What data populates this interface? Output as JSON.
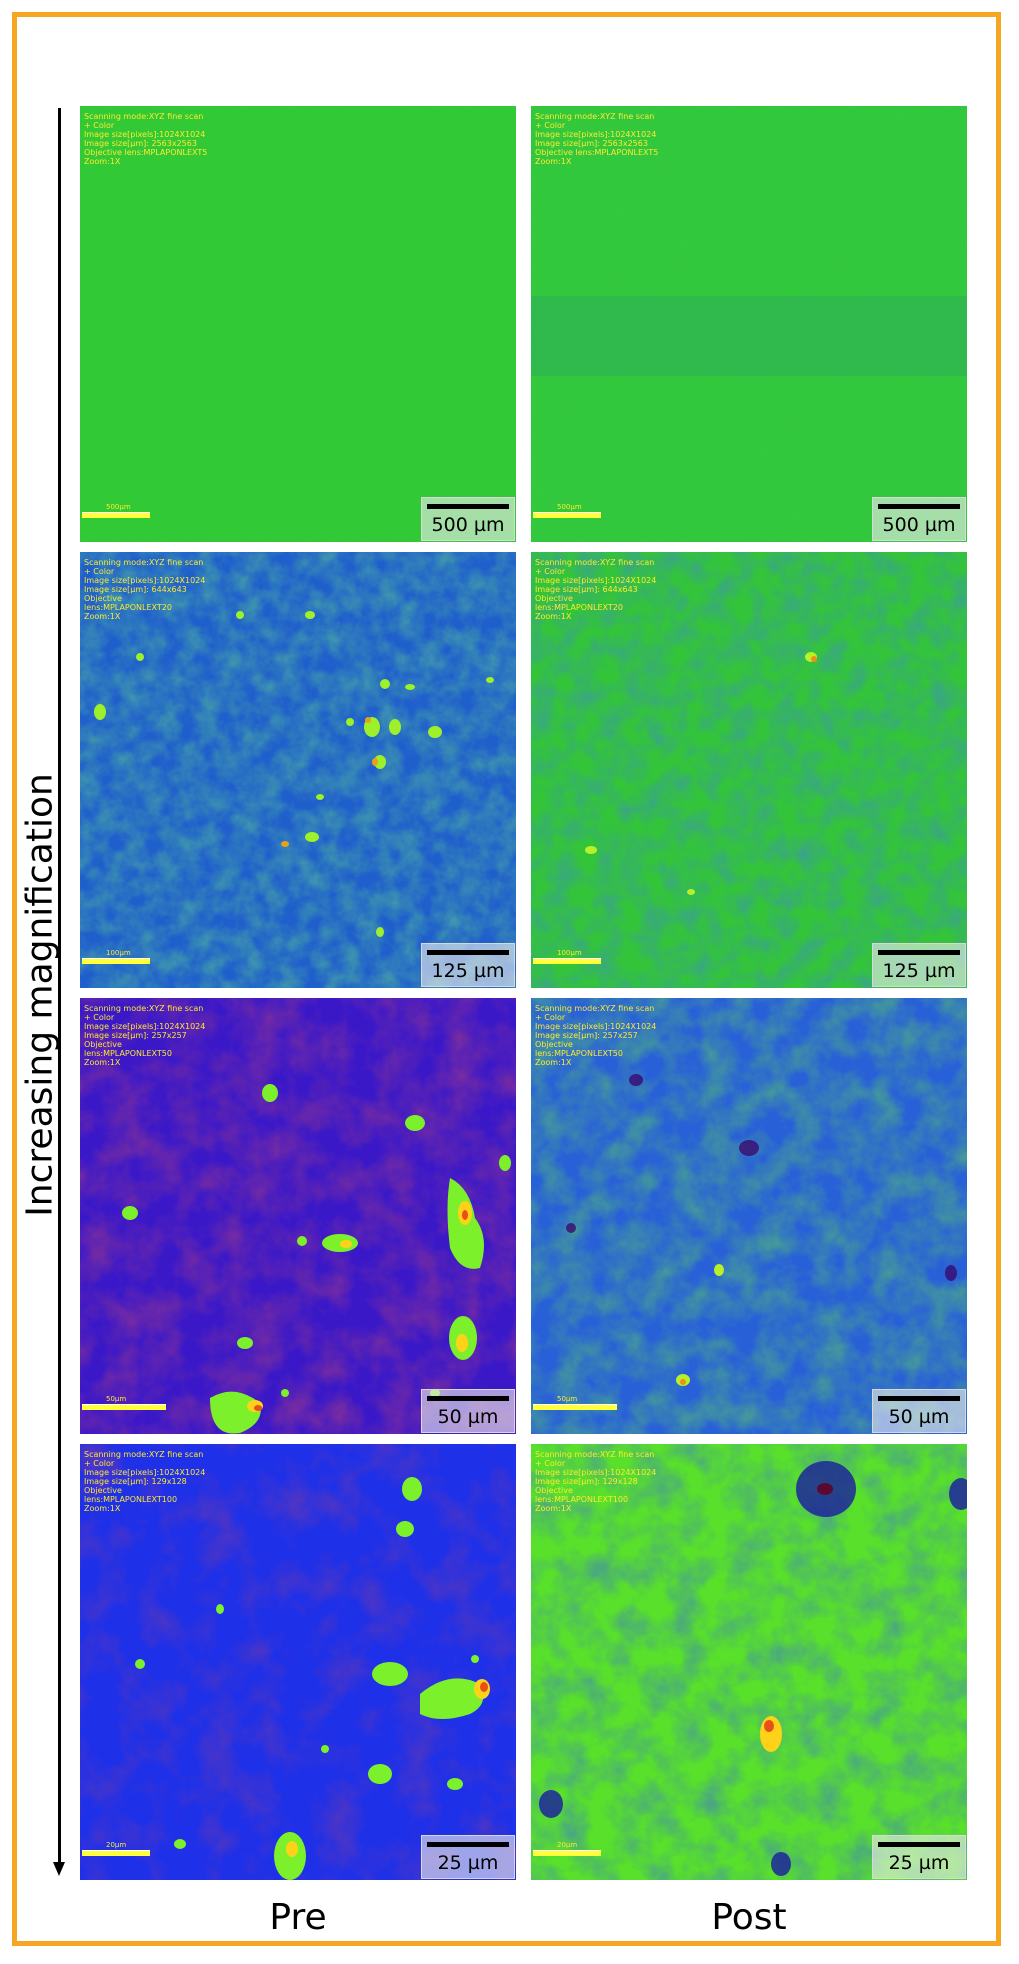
{
  "axis": {
    "label": "Increasing magnification"
  },
  "columns": [
    "Pre",
    "Post"
  ],
  "rows": [
    {
      "scale_bar": "500 µm",
      "pre": {
        "meta_text": "Scanning mode:XYZ fine scan\n+ Color\nImage size[pixels]:1024X1024\nImage size[µm]: 2563x2563\nObjective lens:MPLAPONLEXT5\nZoom:1X",
        "inner_scale": "500µm"
      },
      "post": {
        "meta_text": "Scanning mode:XYZ fine scan\n+ Color\nImage size[pixels]:1024X1024\nImage size[µm]: 2563x2563\nObjective lens:MPLAPONLEXT5\nZoom:1X",
        "inner_scale": "500µm"
      }
    },
    {
      "scale_bar": "125 µm",
      "pre": {
        "meta_text": "Scanning mode:XYZ fine scan\n+ Color\nImage size[pixels]:1024X1024\nImage size[µm]: 644x643\nObjective\nlens:MPLAPONLEXT20\nZoom:1X",
        "inner_scale": "100µm"
      },
      "post": {
        "meta_text": "Scanning mode:XYZ fine scan\n+ Color\nImage size[pixels]:1024X1024\nImage size[µm]: 644x643\nObjective\nlens:MPLAPONLEXT20\nZoom:1X",
        "inner_scale": "100µm"
      }
    },
    {
      "scale_bar": "50 µm",
      "pre": {
        "meta_text": "Scanning mode:XYZ fine scan\n+ Color\nImage size[pixels]:1024X1024\nImage size[µm]: 257x257\nObjective\nlens:MPLAPONLEXT50\nZoom:1X",
        "inner_scale": "50µm"
      },
      "post": {
        "meta_text": "Scanning mode:XYZ fine scan\n+ Color\nImage size[pixels]:1024X1024\nImage size[µm]: 257x257\nObjective\nlens:MPLAPONLEXT50\nZoom:1X",
        "inner_scale": "50µm"
      }
    },
    {
      "scale_bar": "25 µm",
      "pre": {
        "meta_text": "Scanning mode:XYZ fine scan\n+ Color\nImage size[pixels]:1024X1024\nImage size[µm]: 129x128\nObjective\nlens:MPLAPONLEXT100\nZoom:1X",
        "inner_scale": "20µm"
      },
      "post": {
        "meta_text": "Scanning mode:XYZ fine scan\n+ Color\nImage size[pixels]:1024X1024\nImage size[µm]: 129x128\nObjective\nlens:MPLAPONLEXT100\nZoom:1X",
        "inner_scale": "20µm"
      }
    }
  ],
  "colors": {
    "frame": "#f5a623",
    "r0_pre_bg": "#2fd22a",
    "r0_post_bg": "#2fd22a",
    "r1_pre_bg": "#1f5fcc",
    "r1_post_bg": "#33c43a",
    "r2_pre_bg": "#3a18c8",
    "r2_post_bg": "#2860d8",
    "r3_pre_bg": "#1e30e8",
    "r3_post_bg": "#58e02a"
  }
}
